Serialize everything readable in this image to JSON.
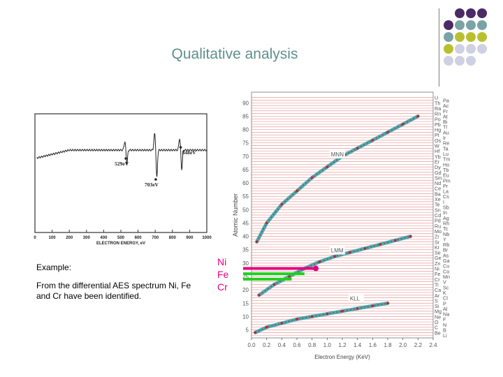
{
  "slide": {
    "title": "Qualitative analysis",
    "example_heading": "Example:",
    "example_text": "From the differential AES spectrum Ni, Fe and Cr have been identified.",
    "elements": [
      "Ni",
      "Fe",
      "Cr"
    ]
  },
  "colors": {
    "title": "#5f8f8d",
    "element_label": "#e4007c",
    "dot_purple": "#4b2a66",
    "dot_teal": "#7aa3a6",
    "dot_yellow": "#b9c02f",
    "dot_light": "#cfd1e3",
    "chart_band": "#e79a9a",
    "chart_line": "#2aa0a6",
    "chart_point": "#c4232e",
    "ni_bar": "#e4007c",
    "fe_bar": "#1fd01f",
    "cr_bar": "#1fd01f"
  },
  "chart_data": [
    {
      "type": "line",
      "title": "",
      "xlabel": "ELECTRON ENERGY, eV",
      "ylabel": "",
      "x_ticks": [
        "0",
        "100",
        "200",
        "300",
        "400",
        "500",
        "600",
        "700",
        "800",
        "900",
        "1000"
      ],
      "xlim": [
        0,
        1000
      ],
      "annotations": [
        "529eV",
        "703eV",
        "848eV"
      ],
      "annotation_x": [
        529,
        703,
        848
      ]
    },
    {
      "type": "scatter",
      "title": "",
      "xlabel": "Electron Energy (KeV)",
      "ylabel": "Atomic Number",
      "x_ticks": [
        "0.0",
        "0.2",
        "0.4",
        "0.6",
        "0.8",
        "1.0",
        "1.2",
        "1.4",
        "1.6",
        "1.8",
        "2.0",
        "2.2",
        "2.4"
      ],
      "y_ticks": [
        "5",
        "10",
        "15",
        "20",
        "25",
        "30",
        "35",
        "40",
        "45",
        "50",
        "55",
        "60",
        "65",
        "70",
        "75",
        "80",
        "85",
        "90"
      ],
      "xlim": [
        0,
        2.4
      ],
      "ylim": [
        2,
        94
      ],
      "series_labels": [
        "MNN",
        "LMM",
        "KLL"
      ],
      "series": [
        {
          "name": "MNN",
          "x": [
            0.07,
            0.2,
            0.4,
            0.6,
            0.8,
            1.0,
            1.2,
            1.4,
            1.6,
            1.8,
            2.0,
            2.2
          ],
          "y": [
            38,
            45,
            52,
            57,
            62,
            66,
            70,
            73,
            76,
            79,
            82,
            85
          ]
        },
        {
          "name": "LMM",
          "x": [
            0.1,
            0.3,
            0.5,
            0.7,
            0.9,
            1.1,
            1.3,
            1.5,
            1.7,
            1.9,
            2.1
          ],
          "y": [
            18,
            22,
            25,
            28,
            30.5,
            32.5,
            34,
            35.5,
            37,
            38.5,
            40
          ]
        },
        {
          "name": "KLL",
          "x": [
            0.05,
            0.2,
            0.4,
            0.6,
            0.8,
            1.0,
            1.2,
            1.4,
            1.6,
            1.8
          ],
          "y": [
            4,
            6,
            7.5,
            9,
            10,
            11,
            12,
            13,
            14,
            15
          ]
        }
      ],
      "highlights": [
        {
          "name": "Ni",
          "x": 0.85,
          "y": 28
        },
        {
          "name": "Fe",
          "x": 0.7,
          "y": 26
        },
        {
          "name": "Cr",
          "x": 0.53,
          "y": 24
        }
      ],
      "element_symbols": [
        "U",
        "Pa",
        "Th",
        "Ac",
        "Ra",
        "Fr",
        "Rn",
        "At",
        "Po",
        "Bi",
        "Pb",
        "Tl",
        "Hg",
        "Au",
        "Pt",
        "Ir",
        "Os",
        "Re",
        "W",
        "Ta",
        "Hf",
        "Lu",
        "Yb",
        "Tm",
        "Er",
        "Ho",
        "Dy",
        "Tb",
        "Gd",
        "Eu",
        "Sm",
        "Pm",
        "Nd",
        "Pr",
        "Ce",
        "La",
        "Ba",
        "Cs",
        "Xe",
        "I",
        "Te",
        "Sb",
        "Sn",
        "In",
        "Cd",
        "Ag",
        "Pd",
        "Rh",
        "Ru",
        "Tc",
        "Mo",
        "Nb",
        "Zr",
        "Y",
        "Sr",
        "Rb",
        "Kr",
        "Br",
        "Se",
        "As",
        "Ge",
        "Ga",
        "Zn",
        "Cu",
        "Ni",
        "Co",
        "Fe",
        "Mn",
        "Cr",
        "V",
        "Ti",
        "Sc",
        "Ca",
        "K",
        "Ar",
        "Cl",
        "S",
        "P",
        "Si",
        "Al",
        "Mg",
        "Na",
        "Ne",
        "F",
        "O",
        "N",
        "C",
        "B",
        "Be",
        "Li"
      ]
    }
  ]
}
